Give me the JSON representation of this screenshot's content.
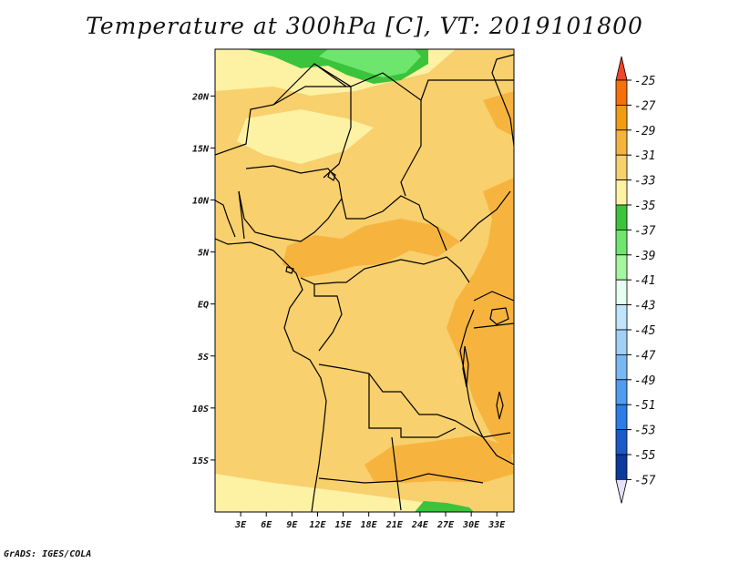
{
  "title": "Temperature at 300hPa [C], VT: 2019101800",
  "footer": "GrADS: IGES/COLA",
  "lat_labels": [
    "20N",
    "15N",
    "10N",
    "5N",
    "EQ",
    "5S",
    "10S",
    "15S"
  ],
  "lat_values": [
    20,
    15,
    10,
    5,
    0,
    -5,
    -10,
    -15
  ],
  "lon_labels": [
    "3E",
    "6E",
    "9E",
    "12E",
    "15E",
    "18E",
    "21E",
    "24E",
    "27E",
    "30E",
    "33E"
  ],
  "lon_values": [
    3,
    6,
    9,
    12,
    15,
    18,
    21,
    24,
    27,
    30,
    33
  ],
  "map_extent": {
    "lon": [
      0,
      35
    ],
    "lat": [
      -20,
      24.5
    ]
  },
  "colorbar": {
    "labels": [
      "-25",
      "-27",
      "-29",
      "-31",
      "-33",
      "-35",
      "-37",
      "-39",
      "-41",
      "-43",
      "-45",
      "-47",
      "-49",
      "-51",
      "-53",
      "-55",
      "-57"
    ],
    "colors": [
      "#f0462a",
      "#f5720b",
      "#f49b14",
      "#f6b43f",
      "#f8d06d",
      "#fdf1a3",
      "#3bc43b",
      "#6ee66e",
      "#a6f5a0",
      "#e6fff0",
      "#bfe4fb",
      "#a1d0f6",
      "#7ab8f4",
      "#4f9def",
      "#2b7ce7",
      "#1b59c9",
      "#0b3a9c",
      "#0b1a6a"
    ],
    "triangle_top": "#f0462a",
    "triangle_bottom": "#e6e0fa"
  },
  "field_colors": {
    "background": "#f8d06d",
    "cooler": "#fdf1a3",
    "warmer": "#f6b43f",
    "green": "#3bc43b",
    "lightgreen": "#6ee66e",
    "border": "#000000"
  }
}
